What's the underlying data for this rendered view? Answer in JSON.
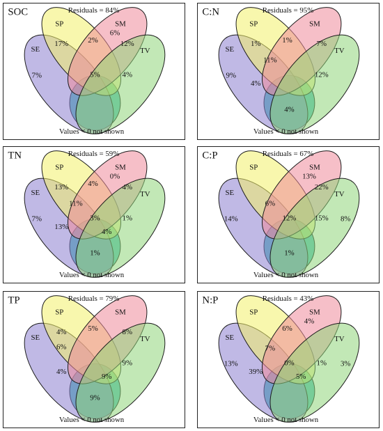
{
  "colors": {
    "SE": "#8c7fd0",
    "SP": "#f2f06a",
    "SM": "#ef8a9a",
    "TV": "#8fd67a",
    "bottom": "#3fb9b0",
    "outline": "#1a1a1a"
  },
  "set_labels": {
    "SE": "SE",
    "SP": "SP",
    "SM": "SM",
    "TV": "TV"
  },
  "footnote": "Values < 0 not shown",
  "panels": [
    {
      "title": "SOC",
      "residuals": "Residuals = 84%",
      "values": {
        "SE_only": "7%",
        "SP_only": "17%",
        "SM_only": "6%",
        "TV_only": "",
        "SP_SM": "2%",
        "SM_TV": "12%",
        "SE_SP": "",
        "SE_SP_SM": "",
        "SP_SM_TV": "4%",
        "center": "5%",
        "SE_SM": "",
        "bottom": "",
        "SE_TV_SP": ""
      }
    },
    {
      "title": "C:N",
      "residuals": "Residuals = 95%",
      "values": {
        "SE_only": "9%",
        "SP_only": "1%",
        "SM_only": "",
        "TV_only": "",
        "SP_SM": "1%",
        "SM_TV": "7%",
        "SE_SP": "",
        "SE_SP_SM": "11%",
        "SP_SM_TV": "12%",
        "center": "",
        "SE_SM": "4%",
        "bottom": "4%",
        "SE_TV_SP": ""
      }
    },
    {
      "title": "TN",
      "residuals": "Residuals = 59%",
      "values": {
        "SE_only": "7%",
        "SP_only": "13%",
        "SM_only": "0%",
        "TV_only": "",
        "SP_SM": "4%",
        "SM_TV": "4%",
        "SE_SP": "",
        "SE_SP_SM": "11%",
        "SP_SM_TV": "1%",
        "center": "3%",
        "SE_SM": "13%",
        "bottom": "1%",
        "SE_TV_SP": "4%"
      }
    },
    {
      "title": "C:P",
      "residuals": "Residuals = 67%",
      "values": {
        "SE_only": "14%",
        "SP_only": "",
        "SM_only": "13%",
        "TV_only": "8%",
        "SP_SM": "",
        "SM_TV": "22%",
        "SE_SP": "",
        "SE_SP_SM": "6%",
        "SP_SM_TV": "15%",
        "center": "12%",
        "SE_SM": "",
        "bottom": "1%",
        "SE_TV_SP": ""
      }
    },
    {
      "title": "TP",
      "residuals": "Residuals = 79%",
      "values": {
        "SE_only": "",
        "SP_only": "4%",
        "SM_only": "",
        "TV_only": "",
        "SP_SM": "5%",
        "SM_TV": "8%",
        "SE_SP": "6%",
        "SE_SP_SM": "",
        "SP_SM_TV": "9%",
        "center": "",
        "SE_SM": "4%",
        "bottom": "9%",
        "SE_TV_SP": "9%"
      }
    },
    {
      "title": "N:P",
      "residuals": "Residuals = 43%",
      "values": {
        "SE_only": "13%",
        "SP_only": "",
        "SM_only": "4%",
        "TV_only": "3%",
        "SP_SM": "6%",
        "SM_TV": "",
        "SE_SP": "",
        "SE_SP_SM": "7%",
        "SP_SM_TV": "1%",
        "center": "0%",
        "SE_SM": "39%",
        "bottom": "",
        "SE_TV_SP": "5%"
      }
    }
  ]
}
